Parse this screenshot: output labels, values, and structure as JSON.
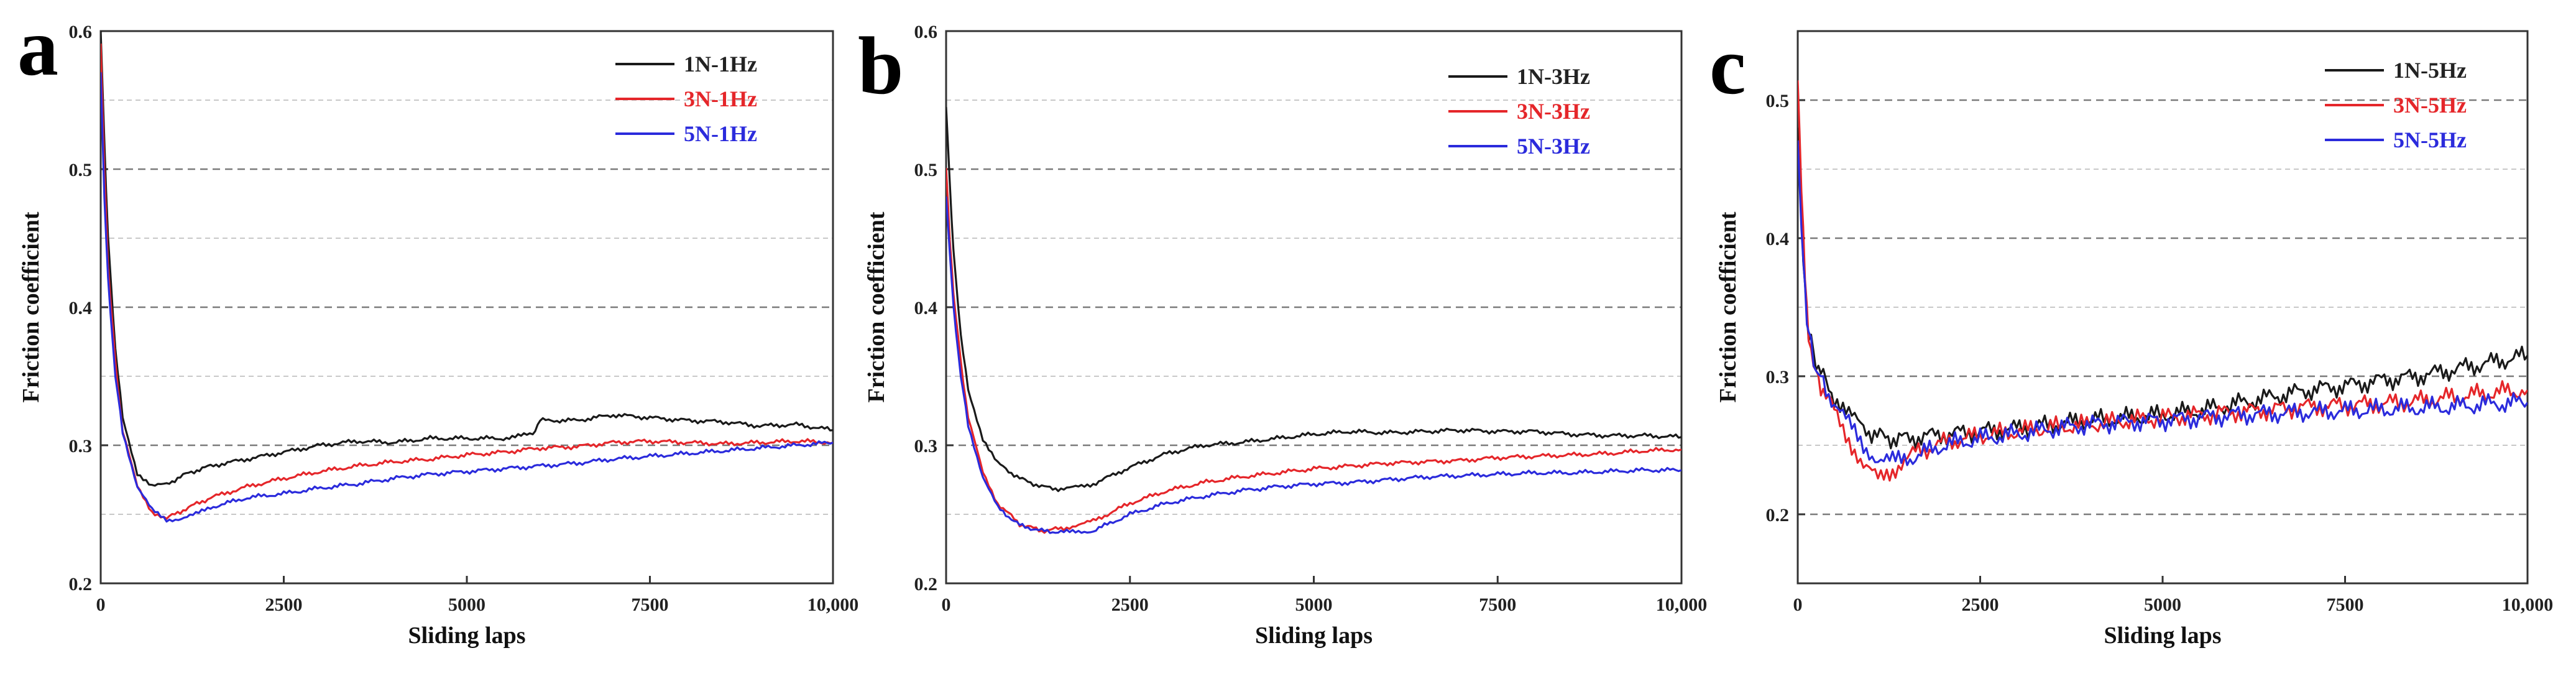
{
  "chart_data": [
    {
      "type": "line",
      "panel_letter": "a",
      "xlabel": "Sliding laps",
      "ylabel": "Friction coefficient",
      "xlim": [
        0,
        10000
      ],
      "ylim": [
        0.2,
        0.6
      ],
      "xticks": [
        0,
        2500,
        5000,
        7500,
        10000
      ],
      "xtick_labels": [
        "0",
        "2500",
        "5000",
        "7500",
        "10,000"
      ],
      "yticks": [
        0.2,
        0.3,
        0.4,
        0.5,
        0.6
      ],
      "ytick_labels": [
        "0.2",
        "0.3",
        "0.4",
        "0.5",
        "0.6"
      ],
      "major_gridlines": [
        0.3,
        0.4,
        0.5,
        0.6
      ],
      "minor_gridlines": [
        0.25,
        0.35,
        0.45,
        0.55
      ],
      "legend_position": "top-right",
      "series": [
        {
          "name": "1N-1Hz",
          "color": "#1a1a1a",
          "x": [
            0,
            50,
            100,
            200,
            300,
            500,
            700,
            900,
            1200,
            1500,
            2000,
            2500,
            3000,
            3500,
            4000,
            4500,
            5000,
            5500,
            5900,
            6000,
            6500,
            7000,
            7500,
            8000,
            8500,
            9000,
            9500,
            10000
          ],
          "y": [
            0.6,
            0.52,
            0.45,
            0.37,
            0.32,
            0.28,
            0.27,
            0.272,
            0.28,
            0.285,
            0.29,
            0.295,
            0.3,
            0.303,
            0.302,
            0.305,
            0.305,
            0.305,
            0.308,
            0.318,
            0.318,
            0.322,
            0.32,
            0.318,
            0.317,
            0.314,
            0.315,
            0.311
          ]
        },
        {
          "name": "3N-1Hz",
          "color": "#e5262a",
          "x": [
            0,
            50,
            100,
            200,
            300,
            500,
            700,
            900,
            1200,
            1500,
            2000,
            2500,
            3000,
            3500,
            4000,
            4500,
            5000,
            5500,
            6000,
            6500,
            7000,
            7500,
            8000,
            8500,
            9000,
            9500,
            10000
          ],
          "y": [
            0.59,
            0.5,
            0.43,
            0.36,
            0.31,
            0.27,
            0.252,
            0.247,
            0.255,
            0.262,
            0.27,
            0.276,
            0.281,
            0.285,
            0.288,
            0.29,
            0.293,
            0.295,
            0.298,
            0.299,
            0.302,
            0.303,
            0.302,
            0.301,
            0.302,
            0.303,
            0.302
          ]
        },
        {
          "name": "5N-1Hz",
          "color": "#2b2bdc",
          "x": [
            0,
            50,
            100,
            200,
            300,
            500,
            700,
            900,
            1100,
            1300,
            1500,
            2000,
            2500,
            3000,
            3500,
            4000,
            4500,
            5000,
            5500,
            6000,
            6500,
            7000,
            7500,
            8000,
            8500,
            9000,
            9500,
            10000
          ],
          "y": [
            0.57,
            0.48,
            0.42,
            0.35,
            0.31,
            0.27,
            0.253,
            0.246,
            0.247,
            0.25,
            0.255,
            0.262,
            0.265,
            0.269,
            0.272,
            0.276,
            0.279,
            0.281,
            0.283,
            0.285,
            0.287,
            0.29,
            0.292,
            0.294,
            0.296,
            0.298,
            0.3,
            0.302
          ]
        }
      ]
    },
    {
      "type": "line",
      "panel_letter": "b",
      "xlabel": "Sliding laps",
      "ylabel": "Friction coefficient",
      "xlim": [
        0,
        10000
      ],
      "ylim": [
        0.2,
        0.6
      ],
      "xticks": [
        0,
        2500,
        5000,
        7500,
        10000
      ],
      "xtick_labels": [
        "0",
        "2500",
        "5000",
        "7500",
        "10,000"
      ],
      "yticks": [
        0.2,
        0.3,
        0.4,
        0.5,
        0.6
      ],
      "ytick_labels": [
        "0.2",
        "0.3",
        "0.4",
        "0.5",
        "0.6"
      ],
      "major_gridlines": [
        0.3,
        0.4,
        0.5
      ],
      "minor_gridlines": [
        0.25,
        0.35,
        0.45,
        0.55
      ],
      "legend_position": "top-right",
      "series": [
        {
          "name": "1N-3Hz",
          "color": "#1a1a1a",
          "x": [
            0,
            50,
            100,
            200,
            300,
            500,
            700,
            1000,
            1300,
            1600,
            2000,
            2500,
            3000,
            3500,
            4000,
            4500,
            5000,
            5500,
            6000,
            6500,
            7000,
            7500,
            8000,
            8500,
            9000,
            9500,
            10000
          ],
          "y": [
            0.545,
            0.49,
            0.44,
            0.38,
            0.34,
            0.305,
            0.287,
            0.276,
            0.27,
            0.268,
            0.272,
            0.284,
            0.294,
            0.3,
            0.302,
            0.305,
            0.308,
            0.31,
            0.309,
            0.31,
            0.311,
            0.31,
            0.31,
            0.308,
            0.307,
            0.307,
            0.306
          ]
        },
        {
          "name": "3N-3Hz",
          "color": "#e5262a",
          "x": [
            0,
            50,
            100,
            200,
            300,
            500,
            700,
            1000,
            1300,
            1600,
            2000,
            2500,
            3000,
            3500,
            4000,
            4500,
            5000,
            5500,
            6000,
            6500,
            7000,
            7500,
            8000,
            8500,
            9000,
            9500,
            10000
          ],
          "y": [
            0.5,
            0.45,
            0.41,
            0.36,
            0.32,
            0.28,
            0.258,
            0.243,
            0.238,
            0.24,
            0.245,
            0.258,
            0.267,
            0.273,
            0.277,
            0.28,
            0.283,
            0.285,
            0.287,
            0.288,
            0.289,
            0.291,
            0.292,
            0.293,
            0.294,
            0.296,
            0.297
          ]
        },
        {
          "name": "5N-3Hz",
          "color": "#2b2bdc",
          "x": [
            0,
            50,
            100,
            200,
            300,
            500,
            700,
            1000,
            1300,
            1600,
            2000,
            2500,
            3000,
            3500,
            4000,
            4500,
            5000,
            5500,
            6000,
            6500,
            7000,
            7500,
            8000,
            8500,
            9000,
            9500,
            10000
          ],
          "y": [
            0.48,
            0.44,
            0.4,
            0.35,
            0.315,
            0.277,
            0.255,
            0.242,
            0.238,
            0.237,
            0.238,
            0.25,
            0.258,
            0.263,
            0.267,
            0.27,
            0.272,
            0.273,
            0.275,
            0.277,
            0.278,
            0.279,
            0.28,
            0.28,
            0.281,
            0.282,
            0.282
          ]
        }
      ]
    },
    {
      "type": "line",
      "panel_letter": "c",
      "xlabel": "Sliding laps",
      "ylabel": "Friction coefficient",
      "xlim": [
        0,
        10000
      ],
      "ylim": [
        0.15,
        0.55
      ],
      "xticks": [
        0,
        2500,
        5000,
        7500,
        10000
      ],
      "xtick_labels": [
        "0",
        "2500",
        "5000",
        "7500",
        "10,000"
      ],
      "yticks": [
        0.2,
        0.3,
        0.4,
        0.5
      ],
      "ytick_labels": [
        "0.2",
        "0.3",
        "0.4",
        "0.5"
      ],
      "major_gridlines": [
        0.2,
        0.3,
        0.4,
        0.5
      ],
      "minor_gridlines": [
        0.25,
        0.35,
        0.45
      ],
      "legend_position": "top-right",
      "series": [
        {
          "name": "1N-5Hz",
          "color": "#1a1a1a",
          "x": [
            0,
            50,
            100,
            150,
            250,
            350,
            500,
            700,
            900,
            1200,
            1500,
            2000,
            2500,
            3000,
            3500,
            4000,
            4500,
            5000,
            5500,
            6000,
            6500,
            7000,
            7500,
            8000,
            8500,
            9000,
            9500,
            10000
          ],
          "y": [
            0.48,
            0.42,
            0.36,
            0.33,
            0.31,
            0.3,
            0.285,
            0.272,
            0.262,
            0.255,
            0.255,
            0.258,
            0.26,
            0.262,
            0.265,
            0.268,
            0.27,
            0.272,
            0.275,
            0.28,
            0.285,
            0.29,
            0.293,
            0.297,
            0.3,
            0.305,
            0.31,
            0.315
          ]
        },
        {
          "name": "3N-5Hz",
          "color": "#e5262a",
          "x": [
            0,
            50,
            100,
            150,
            250,
            350,
            500,
            700,
            900,
            1100,
            1300,
            1500,
            2000,
            2500,
            3000,
            3500,
            4000,
            4500,
            5000,
            5500,
            6000,
            6500,
            7000,
            7500,
            8000,
            8500,
            9000,
            9500,
            10000
          ],
          "y": [
            0.51,
            0.44,
            0.37,
            0.33,
            0.3,
            0.29,
            0.275,
            0.255,
            0.235,
            0.225,
            0.232,
            0.242,
            0.252,
            0.257,
            0.26,
            0.263,
            0.265,
            0.268,
            0.27,
            0.272,
            0.274,
            0.276,
            0.278,
            0.279,
            0.28,
            0.282,
            0.285,
            0.288,
            0.29
          ]
        },
        {
          "name": "5N-5Hz",
          "color": "#2b2bdc",
          "x": [
            0,
            50,
            100,
            150,
            250,
            350,
            500,
            700,
            900,
            1100,
            1300,
            1500,
            2000,
            2500,
            3000,
            3500,
            4000,
            4500,
            5000,
            5500,
            6000,
            6500,
            7000,
            7500,
            8000,
            8500,
            9000,
            9500,
            10000
          ],
          "y": [
            0.47,
            0.41,
            0.36,
            0.33,
            0.305,
            0.295,
            0.28,
            0.265,
            0.25,
            0.24,
            0.238,
            0.24,
            0.25,
            0.255,
            0.258,
            0.262,
            0.265,
            0.267,
            0.268,
            0.27,
            0.272,
            0.273,
            0.274,
            0.275,
            0.276,
            0.277,
            0.278,
            0.28,
            0.281
          ]
        }
      ]
    }
  ]
}
